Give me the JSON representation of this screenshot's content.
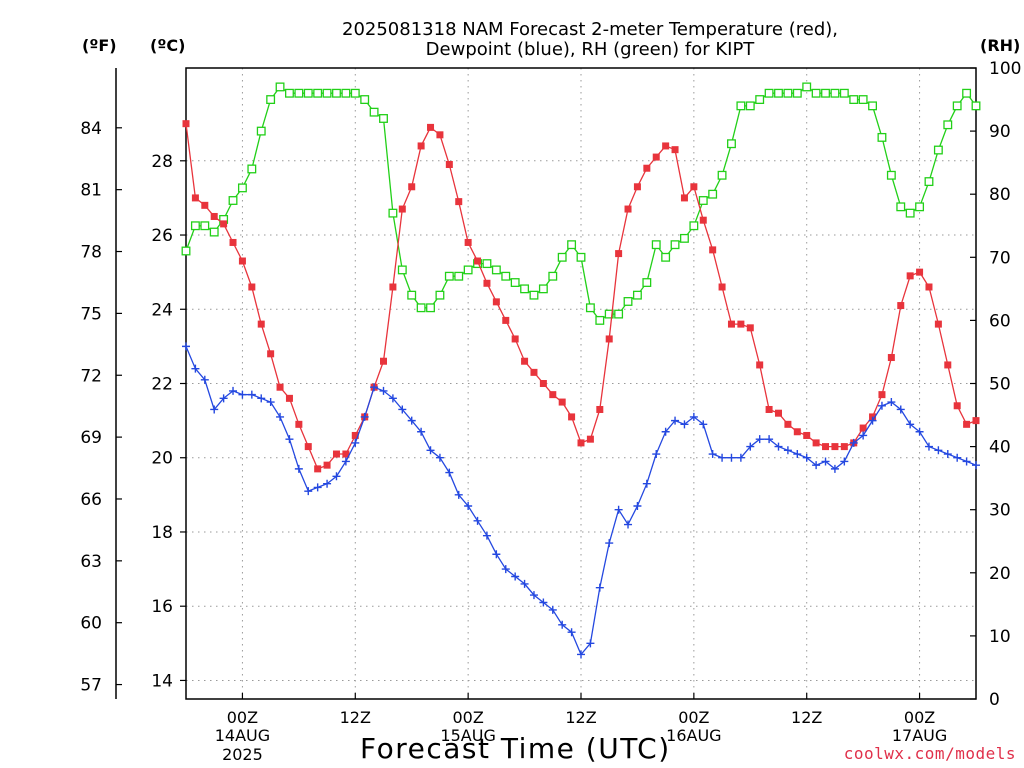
{
  "title_line1": "2025081318 NAM Forecast 2-meter Temperature (red),",
  "title_line2": "Dewpoint (blue), RH (green) for KIPT",
  "credit": "coolwx.com/models",
  "colors": {
    "temperature": "#e8343c",
    "dewpoint": "#2448e0",
    "rh": "#22d018",
    "grid": "#9a9a9a"
  },
  "chart_data": {
    "type": "line",
    "title": "2025081318 NAM Forecast 2-meter Temperature (red), Dewpoint (blue), RH (green) for KIPT",
    "xlabel": "Forecast Time (UTC)",
    "x_unit": "forecast hour from 2025-08-13 18Z",
    "x_range": [
      0,
      84
    ],
    "x_ticks": [
      {
        "hour": 6,
        "label": "00Z",
        "sub1": "14AUG",
        "sub2": "2025"
      },
      {
        "hour": 18,
        "label": "12Z",
        "sub1": "",
        "sub2": ""
      },
      {
        "hour": 30,
        "label": "00Z",
        "sub1": "15AUG",
        "sub2": ""
      },
      {
        "hour": 42,
        "label": "12Z",
        "sub1": "",
        "sub2": ""
      },
      {
        "hour": 54,
        "label": "00Z",
        "sub1": "16AUG",
        "sub2": ""
      },
      {
        "hour": 66,
        "label": "12Z",
        "sub1": "",
        "sub2": ""
      },
      {
        "hour": 78,
        "label": "00Z",
        "sub1": "17AUG",
        "sub2": ""
      }
    ],
    "y_left_label": "(ºC)",
    "y_left_range": [
      13.5,
      30.5
    ],
    "y_left_ticks": [
      14,
      16,
      18,
      20,
      22,
      24,
      26,
      28
    ],
    "y_far_left_label": "(ºF)",
    "y_far_left_ticks": [
      57,
      60,
      63,
      66,
      69,
      72,
      75,
      78,
      81,
      84
    ],
    "y_right_label": "(RH)",
    "y_right_range": [
      0,
      100
    ],
    "y_right_ticks": [
      0,
      10,
      20,
      30,
      40,
      50,
      60,
      70,
      80,
      90,
      100
    ],
    "grid": true,
    "series": [
      {
        "name": "Temperature",
        "axis": "C",
        "marker": "filled-square",
        "color": "#e8343c",
        "x": [
          0,
          1,
          2,
          3,
          4,
          5,
          6,
          7,
          8,
          9,
          10,
          11,
          12,
          13,
          14,
          15,
          16,
          17,
          18,
          19,
          20,
          21,
          22,
          23,
          24,
          25,
          26,
          27,
          28,
          29,
          30,
          31,
          32,
          33,
          34,
          35,
          36,
          37,
          38,
          39,
          40,
          41,
          42,
          43,
          44,
          45,
          46,
          47,
          48,
          49,
          50,
          51,
          52,
          53,
          54,
          55,
          56,
          57,
          58,
          59,
          60,
          61,
          62,
          63,
          64,
          65,
          66,
          67,
          68,
          69,
          70,
          71,
          72,
          73,
          74,
          75,
          76,
          77,
          78,
          79,
          80,
          81,
          82,
          83,
          84
        ],
        "y": [
          29.0,
          27.0,
          26.8,
          26.5,
          26.3,
          25.8,
          25.3,
          24.6,
          23.6,
          22.8,
          21.9,
          21.6,
          20.9,
          20.3,
          19.7,
          19.8,
          20.1,
          20.1,
          20.6,
          21.1,
          21.9,
          22.6,
          24.6,
          26.7,
          27.3,
          28.4,
          28.9,
          28.7,
          27.9,
          26.9,
          25.8,
          25.3,
          24.7,
          24.2,
          23.7,
          23.2,
          22.6,
          22.3,
          22.0,
          21.7,
          21.5,
          21.1,
          20.4,
          20.5,
          21.3,
          23.2,
          25.5,
          26.7,
          27.3,
          27.8,
          28.1,
          28.4,
          28.3,
          27.0,
          27.3,
          26.4,
          25.6,
          24.6,
          23.6,
          23.6,
          23.5,
          22.5,
          21.3,
          21.2,
          20.9,
          20.7,
          20.6,
          20.4,
          20.3,
          20.3,
          20.3,
          20.4,
          20.8,
          21.1,
          21.7,
          22.7,
          24.1,
          24.9,
          25.0,
          24.6,
          23.6,
          22.5,
          21.4,
          20.9,
          21.0
        ]
      },
      {
        "name": "Dewpoint",
        "axis": "C",
        "marker": "plus",
        "color": "#2448e0",
        "x": [
          0,
          1,
          2,
          3,
          4,
          5,
          6,
          7,
          8,
          9,
          10,
          11,
          12,
          13,
          14,
          15,
          16,
          17,
          18,
          19,
          20,
          21,
          22,
          23,
          24,
          25,
          26,
          27,
          28,
          29,
          30,
          31,
          32,
          33,
          34,
          35,
          36,
          37,
          38,
          39,
          40,
          41,
          42,
          43,
          44,
          45,
          46,
          47,
          48,
          49,
          50,
          51,
          52,
          53,
          54,
          55,
          56,
          57,
          58,
          59,
          60,
          61,
          62,
          63,
          64,
          65,
          66,
          67,
          68,
          69,
          70,
          71,
          72,
          73,
          74,
          75,
          76,
          77,
          78,
          79,
          80,
          81,
          82,
          83,
          84
        ],
        "y": [
          23.0,
          22.4,
          22.1,
          21.3,
          21.6,
          21.8,
          21.7,
          21.7,
          21.6,
          21.5,
          21.1,
          20.5,
          19.7,
          19.1,
          19.2,
          19.3,
          19.5,
          19.9,
          20.4,
          21.1,
          21.9,
          21.8,
          21.6,
          21.3,
          21.0,
          20.7,
          20.2,
          20.0,
          19.6,
          19.0,
          18.7,
          18.3,
          17.9,
          17.4,
          17.0,
          16.8,
          16.6,
          16.3,
          16.1,
          15.9,
          15.5,
          15.3,
          14.7,
          15.0,
          16.5,
          17.7,
          18.6,
          18.2,
          18.7,
          19.3,
          20.1,
          20.7,
          21.0,
          20.9,
          21.1,
          20.9,
          20.1,
          20.0,
          20.0,
          20.0,
          20.3,
          20.5,
          20.5,
          20.3,
          20.2,
          20.1,
          20.0,
          19.8,
          19.9,
          19.7,
          19.9,
          20.4,
          20.6,
          21.0,
          21.4,
          21.5,
          21.3,
          20.9,
          20.7,
          20.3,
          20.2,
          20.1,
          20.0,
          19.9,
          19.8
        ]
      },
      {
        "name": "RH",
        "axis": "RH",
        "marker": "open-square",
        "color": "#22d018",
        "x": [
          0,
          1,
          2,
          3,
          4,
          5,
          6,
          7,
          8,
          9,
          10,
          11,
          12,
          13,
          14,
          15,
          16,
          17,
          18,
          19,
          20,
          21,
          22,
          23,
          24,
          25,
          26,
          27,
          28,
          29,
          30,
          31,
          32,
          33,
          34,
          35,
          36,
          37,
          38,
          39,
          40,
          41,
          42,
          43,
          44,
          45,
          46,
          47,
          48,
          49,
          50,
          51,
          52,
          53,
          54,
          55,
          56,
          57,
          58,
          59,
          60,
          61,
          62,
          63,
          64,
          65,
          66,
          67,
          68,
          69,
          70,
          71,
          72,
          73,
          74,
          75,
          76,
          77,
          78,
          79,
          80,
          81,
          82,
          83,
          84
        ],
        "y": [
          71,
          75,
          75,
          74,
          76,
          79,
          81,
          84,
          90,
          95,
          97,
          96,
          96,
          96,
          96,
          96,
          96,
          96,
          96,
          95,
          93,
          92,
          77,
          68,
          64,
          62,
          62,
          64,
          67,
          67,
          68,
          69,
          69,
          68,
          67,
          66,
          65,
          64,
          65,
          67,
          70,
          72,
          70,
          62,
          60,
          61,
          61,
          63,
          64,
          66,
          72,
          70,
          72,
          73,
          75,
          79,
          80,
          83,
          88,
          94,
          94,
          95,
          96,
          96,
          96,
          96,
          97,
          96,
          96,
          96,
          96,
          95,
          95,
          94,
          89,
          83,
          78,
          77,
          78,
          82,
          87,
          91,
          94,
          96,
          94
        ]
      }
    ]
  }
}
